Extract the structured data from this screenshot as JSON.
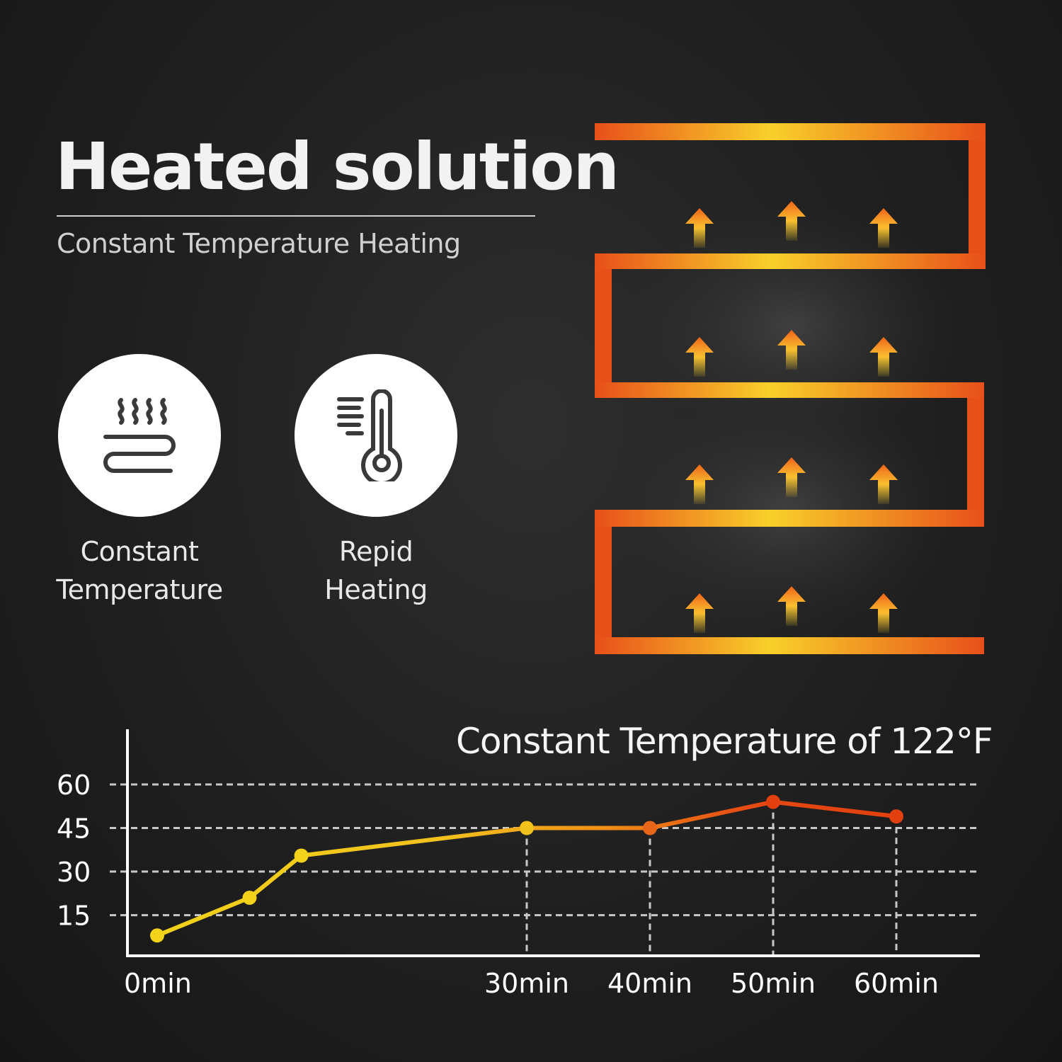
{
  "headline": "Heated solution",
  "subtitle": "Constant Temperature Heating",
  "features": [
    {
      "icon": "heat-waves-icon",
      "label": "Constant\nTemperature"
    },
    {
      "icon": "thermometer-icon",
      "label": "Repid\nHeating"
    }
  ],
  "colors": {
    "yellow": "#f2d21a",
    "orange": "#f29418",
    "red": "#e2400f",
    "background": "#1f1f1f"
  },
  "chart_data": {
    "type": "line",
    "title": "Constant Temperature of 122°F",
    "xlabel": "",
    "ylabel": "",
    "x_ticks": [
      {
        "value": 0,
        "label": "0min"
      },
      {
        "value": 30,
        "label": "30min"
      },
      {
        "value": 40,
        "label": "40min"
      },
      {
        "value": 50,
        "label": "50min"
      },
      {
        "value": 60,
        "label": "60min"
      }
    ],
    "y_ticks": [
      15,
      30,
      45,
      60
    ],
    "xlim": [
      -2,
      66
    ],
    "ylim": [
      1,
      70
    ],
    "grid": "dashed horizontal at y ticks, dashed vertical drops at 30, 40, 50, 60",
    "series": [
      {
        "values": [
          {
            "x": 0,
            "y": 8
          },
          {
            "x": 7.5,
            "y": 21
          },
          {
            "x": 11.7,
            "y": 35.5
          },
          {
            "x": 30,
            "y": 45
          },
          {
            "x": 40,
            "y": 45
          },
          {
            "x": 50,
            "y": 54
          },
          {
            "x": 60,
            "y": 49
          }
        ]
      }
    ]
  }
}
